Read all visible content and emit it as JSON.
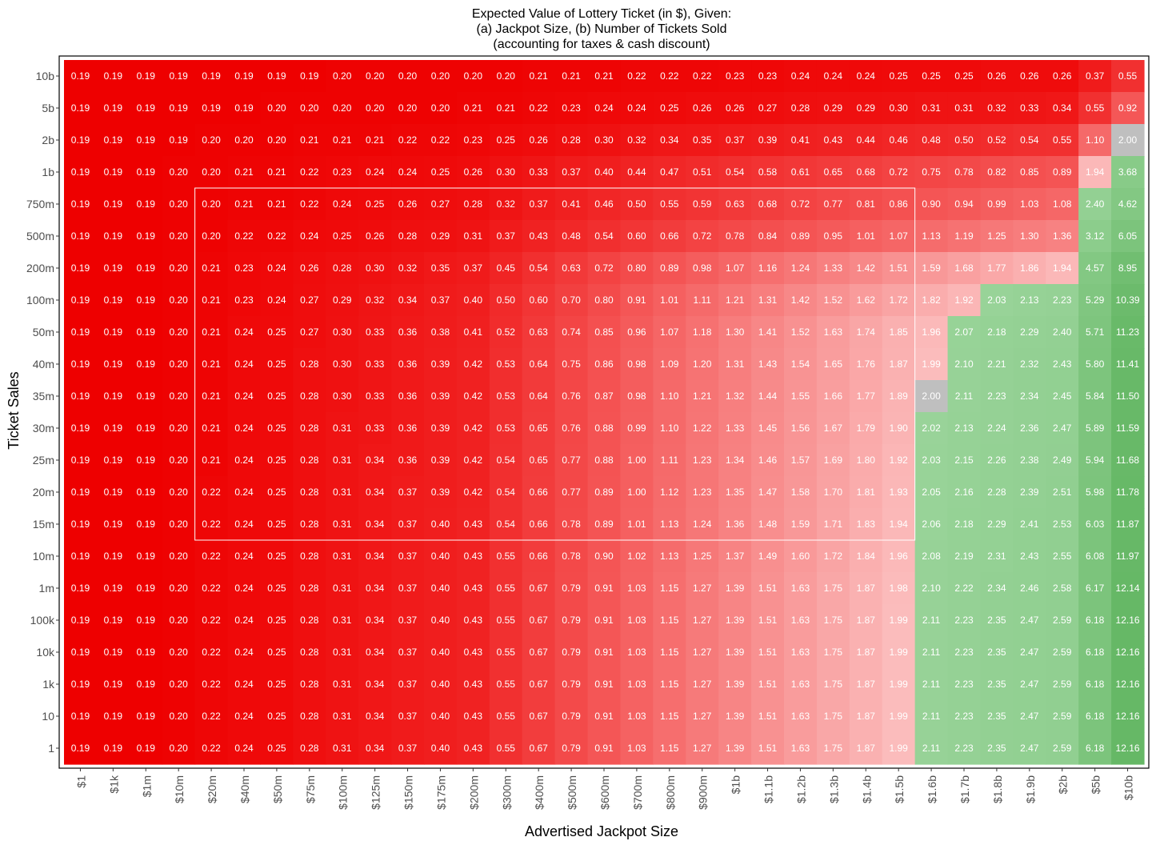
{
  "chart_data": {
    "type": "heatmap",
    "title": [
      "Expected Value of Lottery Ticket (in $), Given:",
      "(a) Jackpot Size,  (b) Number of Tickets Sold",
      "(accounting for taxes & cash discount)"
    ],
    "xlabel": "Advertised Jackpot Size",
    "ylabel": "Ticket Sales",
    "x_categories": [
      "$1",
      "$1k",
      "$1m",
      "$10m",
      "$20m",
      "$40m",
      "$50m",
      "$75m",
      "$100m",
      "$125m",
      "$150m",
      "$175m",
      "$200m",
      "$300m",
      "$400m",
      "$500m",
      "$600m",
      "$700m",
      "$800m",
      "$900m",
      "$1b",
      "$1.1b",
      "$1.2b",
      "$1.3b",
      "$1.4b",
      "$1.5b",
      "$1.6b",
      "$1.7b",
      "$1.8b",
      "$1.9b",
      "$2b",
      "$5b",
      "$10b"
    ],
    "y_categories": [
      "10b",
      "5b",
      "2b",
      "1b",
      "750m",
      "500m",
      "200m",
      "100m",
      "50m",
      "40m",
      "35m",
      "30m",
      "25m",
      "20m",
      "15m",
      "10m",
      "1m",
      "100k",
      "10k",
      "1k",
      "10",
      "1"
    ],
    "values": [
      [
        0.19,
        0.19,
        0.19,
        0.19,
        0.19,
        0.19,
        0.19,
        0.19,
        0.2,
        0.2,
        0.2,
        0.2,
        0.2,
        0.2,
        0.21,
        0.21,
        0.21,
        0.22,
        0.22,
        0.22,
        0.23,
        0.23,
        0.24,
        0.24,
        0.24,
        0.25,
        0.25,
        0.25,
        0.26,
        0.26,
        0.26,
        0.37,
        0.55
      ],
      [
        0.19,
        0.19,
        0.19,
        0.19,
        0.19,
        0.19,
        0.2,
        0.2,
        0.2,
        0.2,
        0.2,
        0.2,
        0.21,
        0.21,
        0.22,
        0.23,
        0.24,
        0.24,
        0.25,
        0.26,
        0.26,
        0.27,
        0.28,
        0.29,
        0.29,
        0.3,
        0.31,
        0.31,
        0.32,
        0.33,
        0.34,
        0.55,
        0.92
      ],
      [
        0.19,
        0.19,
        0.19,
        0.19,
        0.2,
        0.2,
        0.2,
        0.21,
        0.21,
        0.21,
        0.22,
        0.22,
        0.23,
        0.25,
        0.26,
        0.28,
        0.3,
        0.32,
        0.34,
        0.35,
        0.37,
        0.39,
        0.41,
        0.43,
        0.44,
        0.46,
        0.48,
        0.5,
        0.52,
        0.54,
        0.55,
        1.1,
        2.0
      ],
      [
        0.19,
        0.19,
        0.19,
        0.2,
        0.2,
        0.21,
        0.21,
        0.22,
        0.23,
        0.24,
        0.24,
        0.25,
        0.26,
        0.3,
        0.33,
        0.37,
        0.4,
        0.44,
        0.47,
        0.51,
        0.54,
        0.58,
        0.61,
        0.65,
        0.68,
        0.72,
        0.75,
        0.78,
        0.82,
        0.85,
        0.89,
        1.94,
        3.68
      ],
      [
        0.19,
        0.19,
        0.19,
        0.2,
        0.2,
        0.21,
        0.21,
        0.22,
        0.24,
        0.25,
        0.26,
        0.27,
        0.28,
        0.32,
        0.37,
        0.41,
        0.46,
        0.5,
        0.55,
        0.59,
        0.63,
        0.68,
        0.72,
        0.77,
        0.81,
        0.86,
        0.9,
        0.94,
        0.99,
        1.03,
        1.08,
        2.4,
        4.62
      ],
      [
        0.19,
        0.19,
        0.19,
        0.2,
        0.2,
        0.22,
        0.22,
        0.24,
        0.25,
        0.26,
        0.28,
        0.29,
        0.31,
        0.37,
        0.43,
        0.48,
        0.54,
        0.6,
        0.66,
        0.72,
        0.78,
        0.84,
        0.89,
        0.95,
        1.01,
        1.07,
        1.13,
        1.19,
        1.25,
        1.3,
        1.36,
        3.12,
        6.05
      ],
      [
        0.19,
        0.19,
        0.19,
        0.2,
        0.21,
        0.23,
        0.24,
        0.26,
        0.28,
        0.3,
        0.32,
        0.35,
        0.37,
        0.45,
        0.54,
        0.63,
        0.72,
        0.8,
        0.89,
        0.98,
        1.07,
        1.16,
        1.24,
        1.33,
        1.42,
        1.51,
        1.59,
        1.68,
        1.77,
        1.86,
        1.94,
        4.57,
        8.95
      ],
      [
        0.19,
        0.19,
        0.19,
        0.2,
        0.21,
        0.23,
        0.24,
        0.27,
        0.29,
        0.32,
        0.34,
        0.37,
        0.4,
        0.5,
        0.6,
        0.7,
        0.8,
        0.91,
        1.01,
        1.11,
        1.21,
        1.31,
        1.42,
        1.52,
        1.62,
        1.72,
        1.82,
        1.92,
        2.03,
        2.13,
        2.23,
        5.29,
        10.39
      ],
      [
        0.19,
        0.19,
        0.19,
        0.2,
        0.21,
        0.24,
        0.25,
        0.27,
        0.3,
        0.33,
        0.36,
        0.38,
        0.41,
        0.52,
        0.63,
        0.74,
        0.85,
        0.96,
        1.07,
        1.18,
        1.3,
        1.41,
        1.52,
        1.63,
        1.74,
        1.85,
        1.96,
        2.07,
        2.18,
        2.29,
        2.4,
        5.71,
        11.23
      ],
      [
        0.19,
        0.19,
        0.19,
        0.2,
        0.21,
        0.24,
        0.25,
        0.28,
        0.3,
        0.33,
        0.36,
        0.39,
        0.42,
        0.53,
        0.64,
        0.75,
        0.86,
        0.98,
        1.09,
        1.2,
        1.31,
        1.43,
        1.54,
        1.65,
        1.76,
        1.87,
        1.99,
        2.1,
        2.21,
        2.32,
        2.43,
        5.8,
        11.41
      ],
      [
        0.19,
        0.19,
        0.19,
        0.2,
        0.21,
        0.24,
        0.25,
        0.28,
        0.3,
        0.33,
        0.36,
        0.39,
        0.42,
        0.53,
        0.64,
        0.76,
        0.87,
        0.98,
        1.1,
        1.21,
        1.32,
        1.44,
        1.55,
        1.66,
        1.77,
        1.89,
        2.0,
        2.11,
        2.23,
        2.34,
        2.45,
        5.84,
        11.5
      ],
      [
        0.19,
        0.19,
        0.19,
        0.2,
        0.21,
        0.24,
        0.25,
        0.28,
        0.31,
        0.33,
        0.36,
        0.39,
        0.42,
        0.53,
        0.65,
        0.76,
        0.88,
        0.99,
        1.1,
        1.22,
        1.33,
        1.45,
        1.56,
        1.67,
        1.79,
        1.9,
        2.02,
        2.13,
        2.24,
        2.36,
        2.47,
        5.89,
        11.59
      ],
      [
        0.19,
        0.19,
        0.19,
        0.2,
        0.21,
        0.24,
        0.25,
        0.28,
        0.31,
        0.34,
        0.36,
        0.39,
        0.42,
        0.54,
        0.65,
        0.77,
        0.88,
        1.0,
        1.11,
        1.23,
        1.34,
        1.46,
        1.57,
        1.69,
        1.8,
        1.92,
        2.03,
        2.15,
        2.26,
        2.38,
        2.49,
        5.94,
        11.68
      ],
      [
        0.19,
        0.19,
        0.19,
        0.2,
        0.22,
        0.24,
        0.25,
        0.28,
        0.31,
        0.34,
        0.37,
        0.39,
        0.42,
        0.54,
        0.66,
        0.77,
        0.89,
        1.0,
        1.12,
        1.23,
        1.35,
        1.47,
        1.58,
        1.7,
        1.81,
        1.93,
        2.05,
        2.16,
        2.28,
        2.39,
        2.51,
        5.98,
        11.78
      ],
      [
        0.19,
        0.19,
        0.19,
        0.2,
        0.22,
        0.24,
        0.25,
        0.28,
        0.31,
        0.34,
        0.37,
        0.4,
        0.43,
        0.54,
        0.66,
        0.78,
        0.89,
        1.01,
        1.13,
        1.24,
        1.36,
        1.48,
        1.59,
        1.71,
        1.83,
        1.94,
        2.06,
        2.18,
        2.29,
        2.41,
        2.53,
        6.03,
        11.87
      ],
      [
        0.19,
        0.19,
        0.19,
        0.2,
        0.22,
        0.24,
        0.25,
        0.28,
        0.31,
        0.34,
        0.37,
        0.4,
        0.43,
        0.55,
        0.66,
        0.78,
        0.9,
        1.02,
        1.13,
        1.25,
        1.37,
        1.49,
        1.6,
        1.72,
        1.84,
        1.96,
        2.08,
        2.19,
        2.31,
        2.43,
        2.55,
        6.08,
        11.97
      ],
      [
        0.19,
        0.19,
        0.19,
        0.2,
        0.22,
        0.24,
        0.25,
        0.28,
        0.31,
        0.34,
        0.37,
        0.4,
        0.43,
        0.55,
        0.67,
        0.79,
        0.91,
        1.03,
        1.15,
        1.27,
        1.39,
        1.51,
        1.63,
        1.75,
        1.87,
        1.98,
        2.1,
        2.22,
        2.34,
        2.46,
        2.58,
        6.17,
        12.14
      ],
      [
        0.19,
        0.19,
        0.19,
        0.2,
        0.22,
        0.24,
        0.25,
        0.28,
        0.31,
        0.34,
        0.37,
        0.4,
        0.43,
        0.55,
        0.67,
        0.79,
        0.91,
        1.03,
        1.15,
        1.27,
        1.39,
        1.51,
        1.63,
        1.75,
        1.87,
        1.99,
        2.11,
        2.23,
        2.35,
        2.47,
        2.59,
        6.18,
        12.16
      ],
      [
        0.19,
        0.19,
        0.19,
        0.2,
        0.22,
        0.24,
        0.25,
        0.28,
        0.31,
        0.34,
        0.37,
        0.4,
        0.43,
        0.55,
        0.67,
        0.79,
        0.91,
        1.03,
        1.15,
        1.27,
        1.39,
        1.51,
        1.63,
        1.75,
        1.87,
        1.99,
        2.11,
        2.23,
        2.35,
        2.47,
        2.59,
        6.18,
        12.16
      ],
      [
        0.19,
        0.19,
        0.19,
        0.2,
        0.22,
        0.24,
        0.25,
        0.28,
        0.31,
        0.34,
        0.37,
        0.4,
        0.43,
        0.55,
        0.67,
        0.79,
        0.91,
        1.03,
        1.15,
        1.27,
        1.39,
        1.51,
        1.63,
        1.75,
        1.87,
        1.99,
        2.11,
        2.23,
        2.35,
        2.47,
        2.59,
        6.18,
        12.16
      ],
      [
        0.19,
        0.19,
        0.19,
        0.2,
        0.22,
        0.24,
        0.25,
        0.28,
        0.31,
        0.34,
        0.37,
        0.4,
        0.43,
        0.55,
        0.67,
        0.79,
        0.91,
        1.03,
        1.15,
        1.27,
        1.39,
        1.51,
        1.63,
        1.75,
        1.87,
        1.99,
        2.11,
        2.23,
        2.35,
        2.47,
        2.59,
        6.18,
        12.16
      ],
      [
        0.19,
        0.19,
        0.19,
        0.2,
        0.22,
        0.24,
        0.25,
        0.28,
        0.31,
        0.34,
        0.37,
        0.4,
        0.43,
        0.55,
        0.67,
        0.79,
        0.91,
        1.03,
        1.15,
        1.27,
        1.39,
        1.51,
        1.63,
        1.75,
        1.87,
        1.99,
        2.11,
        2.23,
        2.35,
        2.47,
        2.59,
        6.18,
        12.16
      ]
    ],
    "highlight_region": {
      "x_from": "$20m",
      "x_to": "$1.5b",
      "y_from": "750m",
      "y_to": "15m"
    },
    "break_even_value": 2.0,
    "colors": {
      "low": "#ee0000",
      "near_break_even": "#fbbdbd",
      "break_even": "#bfbfbf",
      "above_low": "#9ad49a",
      "above_high": "#66b866",
      "region_outline": "#ffffff",
      "panel_border": "#000000"
    },
    "grid": false,
    "legend": "none"
  }
}
